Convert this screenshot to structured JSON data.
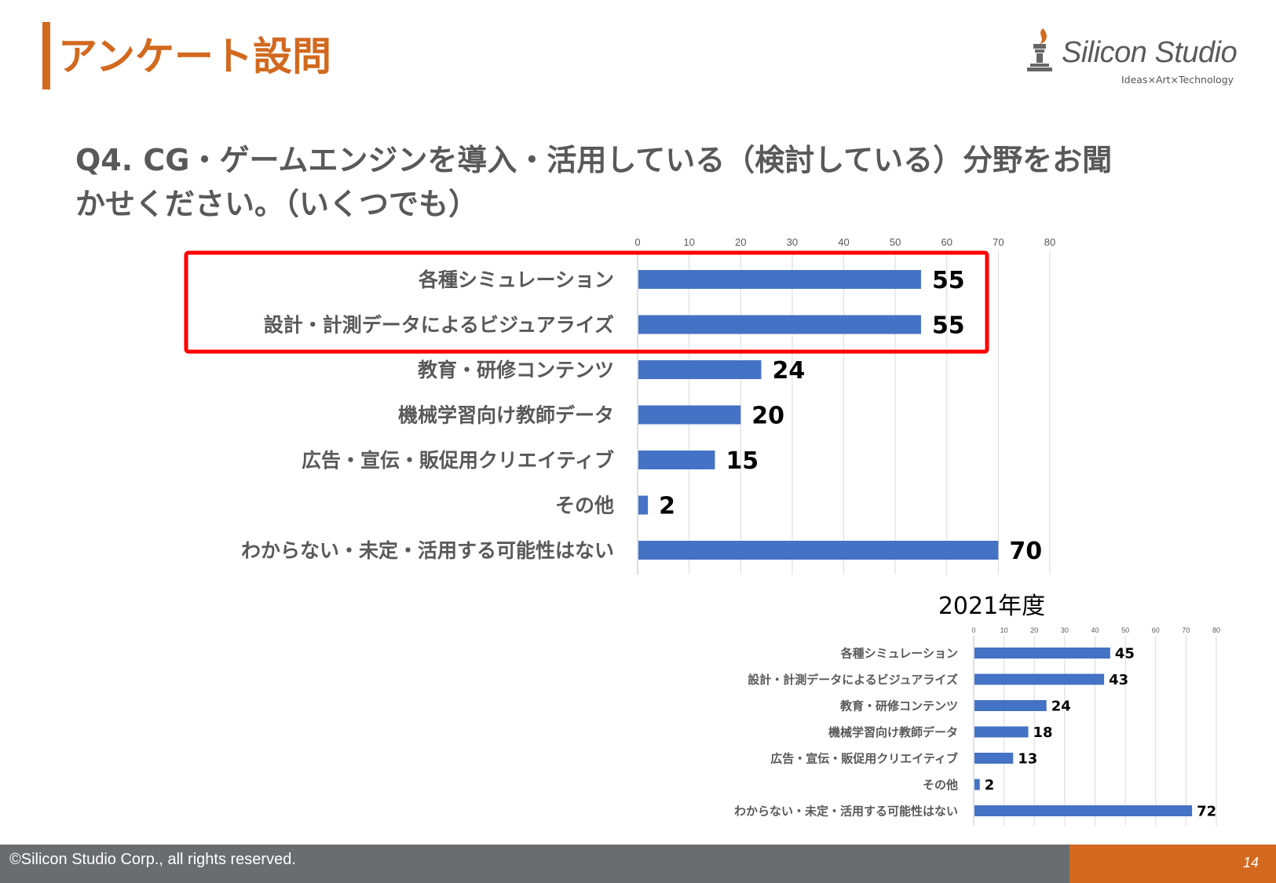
{
  "theme": {
    "accent": "#d2691e",
    "bar": "#4472c4",
    "highlight": "#ff0000",
    "footer_gray": "#696d70"
  },
  "header": {
    "title": "アンケート設問",
    "logo": {
      "name": "Silicon Studio",
      "tagline": "Ideas×Art×Technology",
      "icon": "torch-logo-icon"
    }
  },
  "question": {
    "line1": "Q4. CG・ゲームエンジンを導入・活用している（検討している）分野をお聞",
    "line2": "かせください。（いくつでも）"
  },
  "chart_data": [
    {
      "type": "bar",
      "orientation": "horizontal",
      "title": "",
      "categories": [
        "各種シミュレーション",
        "設計・計測データによるビジュアライズ",
        "教育・研修コンテンツ",
        "機械学習向け教師データ",
        "広告・宣伝・販促用クリエイティブ",
        "その他",
        "わからない・未定・活用する可能性はない"
      ],
      "values": [
        55,
        55,
        24,
        20,
        15,
        2,
        70
      ],
      "xlim": [
        0,
        80
      ],
      "ticks": [
        0,
        10,
        20,
        30,
        40,
        50,
        60,
        70,
        80
      ],
      "grid": true,
      "highlight": {
        "categories": [
          "各種シミュレーション",
          "設計・計測データによるビジュアライズ"
        ],
        "color": "#ff0000"
      }
    },
    {
      "type": "bar",
      "orientation": "horizontal",
      "title": "2021年度",
      "categories": [
        "各種シミュレーション",
        "設計・計測データによるビジュアライズ",
        "教育・研修コンテンツ",
        "機械学習向け教師データ",
        "広告・宣伝・販促用クリエイティブ",
        "その他",
        "わからない・未定・活用する可能性はない"
      ],
      "values": [
        45,
        43,
        24,
        18,
        13,
        2,
        72
      ],
      "xlim": [
        0,
        80
      ],
      "ticks": [
        0,
        10,
        20,
        30,
        40,
        50,
        60,
        70,
        80
      ],
      "grid": true
    }
  ],
  "footer": {
    "copyright": "©Silicon Studio Corp., all rights reserved.",
    "page": "14"
  }
}
